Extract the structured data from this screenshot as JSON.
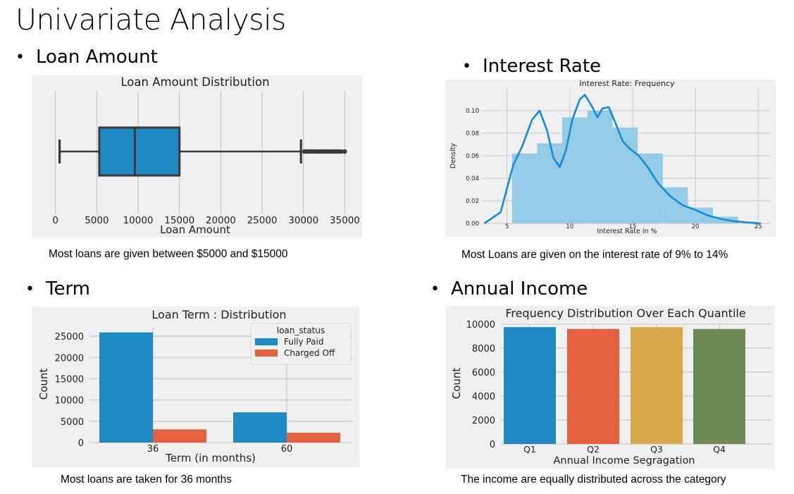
{
  "slide": {
    "title": "Univariate Analysis",
    "bullets": {
      "loan_amount": "Loan Amount",
      "interest_rate": "Interest Rate",
      "term": "Term",
      "annual_income": "Annual Income"
    },
    "captions": {
      "loan_amount": "Most loans are given between $5000 and $15000",
      "interest_rate": "Most Loans are given on the interest rate of 9% to 14%",
      "term": "Most loans are taken for 36 months",
      "annual_income": "The income are equally distributed across the category"
    }
  },
  "colors": {
    "background": "#f0f0f0",
    "grid": "#cbcbcb",
    "blue": "#1f89c4",
    "orange": "#e5603f",
    "gold": "#d6a84a",
    "olive": "#6e8a55",
    "hist": "#8ec8e6",
    "kde": "#168bd6",
    "box_line": "#3a3a3a"
  },
  "chart_data": [
    {
      "id": "loan_amount",
      "type": "box",
      "title": "Loan Amount Distribution",
      "xlabel": "Loan Amount",
      "ylabel": "",
      "xlim": [
        -1000,
        36500
      ],
      "xticks": [
        0,
        5000,
        10000,
        15000,
        20000,
        25000,
        30000,
        35000
      ],
      "stats": {
        "whisker_low": 500,
        "q1": 5300,
        "median": 9600,
        "q3": 15000,
        "whisker_high": 29700
      },
      "outliers": [
        30100,
        30400,
        30700,
        31000,
        31300,
        31600,
        31900,
        32200,
        32500,
        32800,
        33100,
        33400,
        33700,
        34000,
        34300,
        34600,
        35000
      ],
      "grid": true
    },
    {
      "id": "interest_rate",
      "type": "histogram",
      "title": "Interest Rate: Frequency",
      "xlabel": "Interest Rate in %",
      "ylabel": "Density",
      "xlim": [
        3,
        26
      ],
      "ylim": [
        0,
        0.12
      ],
      "xticks": [
        5,
        10,
        15,
        20,
        25
      ],
      "yticks": [
        0.0,
        0.02,
        0.04,
        0.06,
        0.08,
        0.1
      ],
      "bins": [
        {
          "x0": 5.4,
          "x1": 7.4,
          "density": 0.062
        },
        {
          "x0": 7.4,
          "x1": 9.4,
          "density": 0.071
        },
        {
          "x0": 9.4,
          "x1": 11.4,
          "density": 0.094
        },
        {
          "x0": 11.4,
          "x1": 13.4,
          "density": 0.1
        },
        {
          "x0": 13.4,
          "x1": 15.4,
          "density": 0.085
        },
        {
          "x0": 15.4,
          "x1": 17.4,
          "density": 0.062
        },
        {
          "x0": 17.4,
          "x1": 19.4,
          "density": 0.032
        },
        {
          "x0": 19.4,
          "x1": 21.4,
          "density": 0.014
        },
        {
          "x0": 21.4,
          "x1": 23.4,
          "density": 0.006
        }
      ],
      "kde": {
        "x": [
          3.2,
          4.5,
          5.5,
          6.2,
          7.0,
          7.6,
          8.2,
          8.7,
          9.2,
          9.7,
          10.2,
          10.8,
          11.2,
          11.8,
          12.2,
          12.6,
          13.1,
          13.6,
          14.2,
          14.8,
          15.5,
          16.2,
          17.0,
          18.0,
          19.0,
          20.0,
          21.0,
          22.0,
          23.0,
          24.0,
          25.2
        ],
        "y": [
          0.0,
          0.01,
          0.052,
          0.068,
          0.092,
          0.1,
          0.082,
          0.058,
          0.05,
          0.065,
          0.092,
          0.11,
          0.114,
          0.103,
          0.094,
          0.102,
          0.103,
          0.09,
          0.073,
          0.066,
          0.06,
          0.05,
          0.036,
          0.024,
          0.016,
          0.012,
          0.007,
          0.004,
          0.002,
          0.001,
          0.0
        ]
      },
      "grid": true
    },
    {
      "id": "term",
      "type": "bar",
      "title": "Loan Term : Distribution",
      "xlabel": "Term (in months)",
      "ylabel": "Count",
      "categories": [
        "36",
        "60"
      ],
      "ylim": [
        0,
        27000
      ],
      "yticks": [
        0,
        5000,
        10000,
        15000,
        20000,
        25000
      ],
      "legend": {
        "title": "loan_status",
        "position": "top-right"
      },
      "series": [
        {
          "name": "Fully Paid",
          "values": [
            25900,
            7100
          ]
        },
        {
          "name": "Charged Off",
          "values": [
            3100,
            2300
          ]
        }
      ],
      "grid": true
    },
    {
      "id": "annual_income",
      "type": "bar",
      "title": "Frequency Distribution Over Each Quantile",
      "xlabel": "Annual Income Segragation",
      "ylabel": "Count",
      "categories": [
        "Q1",
        "Q2",
        "Q3",
        "Q4"
      ],
      "values": [
        9750,
        9600,
        9750,
        9600
      ],
      "ylim": [
        0,
        10000
      ],
      "yticks": [
        0,
        2000,
        4000,
        6000,
        8000,
        10000
      ],
      "grid": true
    }
  ]
}
